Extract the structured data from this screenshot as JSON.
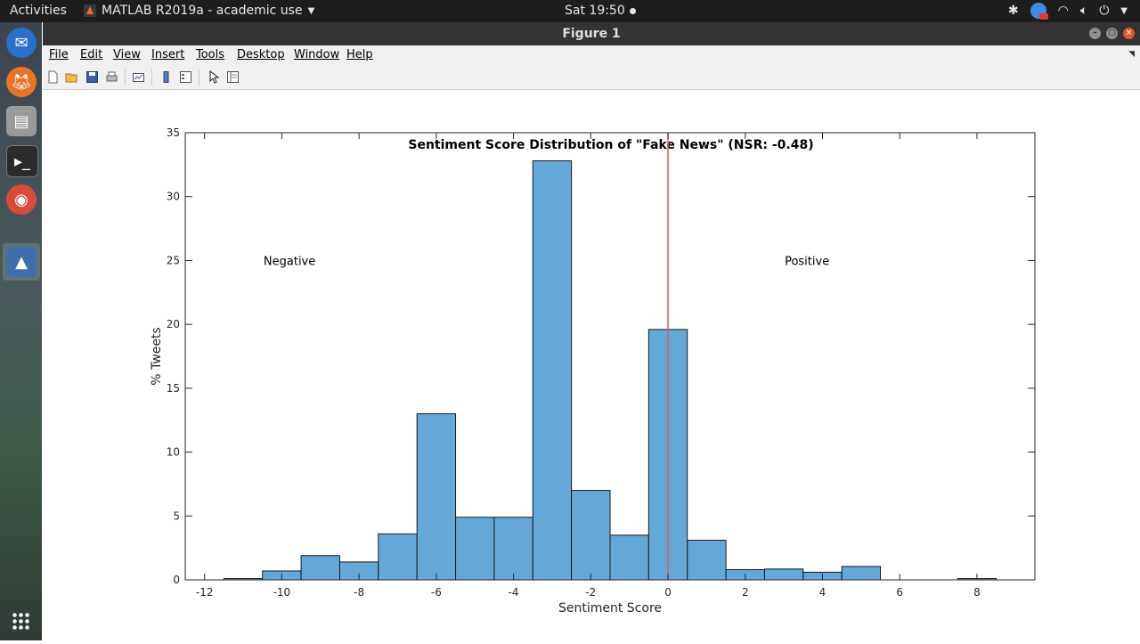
{
  "topbar": {
    "activities": "Activities",
    "app_title": "MATLAB R2019a - academic use",
    "clock": "Sat 19:50"
  },
  "window": {
    "title": "Figure 1",
    "menu": [
      "File",
      "Edit",
      "View",
      "Insert",
      "Tools",
      "Desktop",
      "Window",
      "Help"
    ]
  },
  "toolbar": {
    "icons": [
      "new-figure-icon",
      "open-icon",
      "save-icon",
      "print-icon",
      "link-plot-icon",
      "colorbar-icon",
      "legend-icon",
      "pointer-icon",
      "property-inspector-icon"
    ]
  },
  "dock": {
    "apps": [
      "thunderbird-icon",
      "firefox-icon",
      "files-icon",
      "terminal-icon",
      "chrome-icon",
      "matlab-icon"
    ]
  },
  "chart_data": {
    "type": "bar",
    "title": "Sentiment Score Distribution of \"Fake News\" (NSR: -0.48)",
    "xlabel": "Sentiment Score",
    "ylabel": "% Tweets",
    "xlim": [
      -12.5,
      9.5
    ],
    "ylim": [
      0,
      35
    ],
    "xticks": [
      -12,
      -10,
      -8,
      -6,
      -4,
      -2,
      0,
      2,
      4,
      6,
      8
    ],
    "yticks": [
      0,
      5,
      10,
      15,
      20,
      25,
      30,
      35
    ],
    "bin_width": 1,
    "bins": [
      {
        "x": -11,
        "value": 0.1
      },
      {
        "x": -10,
        "value": 0.7
      },
      {
        "x": -9,
        "value": 1.9
      },
      {
        "x": -8,
        "value": 1.4
      },
      {
        "x": -7,
        "value": 3.6
      },
      {
        "x": -6,
        "value": 13.0
      },
      {
        "x": -5,
        "value": 4.9
      },
      {
        "x": -4,
        "value": 4.9
      },
      {
        "x": -3,
        "value": 32.8
      },
      {
        "x": -2,
        "value": 7.0
      },
      {
        "x": -1,
        "value": 3.5
      },
      {
        "x": 0,
        "value": 19.6
      },
      {
        "x": 1,
        "value": 3.1
      },
      {
        "x": 2,
        "value": 0.8
      },
      {
        "x": 3,
        "value": 0.85
      },
      {
        "x": 4,
        "value": 0.6
      },
      {
        "x": 5,
        "value": 1.05
      },
      {
        "x": 8,
        "value": 0.1
      }
    ],
    "vline": {
      "x": 0,
      "color": "#e05a5a"
    },
    "annotations": [
      {
        "text": "Negative",
        "x": -9.8,
        "y": 25
      },
      {
        "text": "Positive",
        "x": 3.6,
        "y": 25
      }
    ],
    "bar_color": "#64a8d8",
    "grid": false
  }
}
